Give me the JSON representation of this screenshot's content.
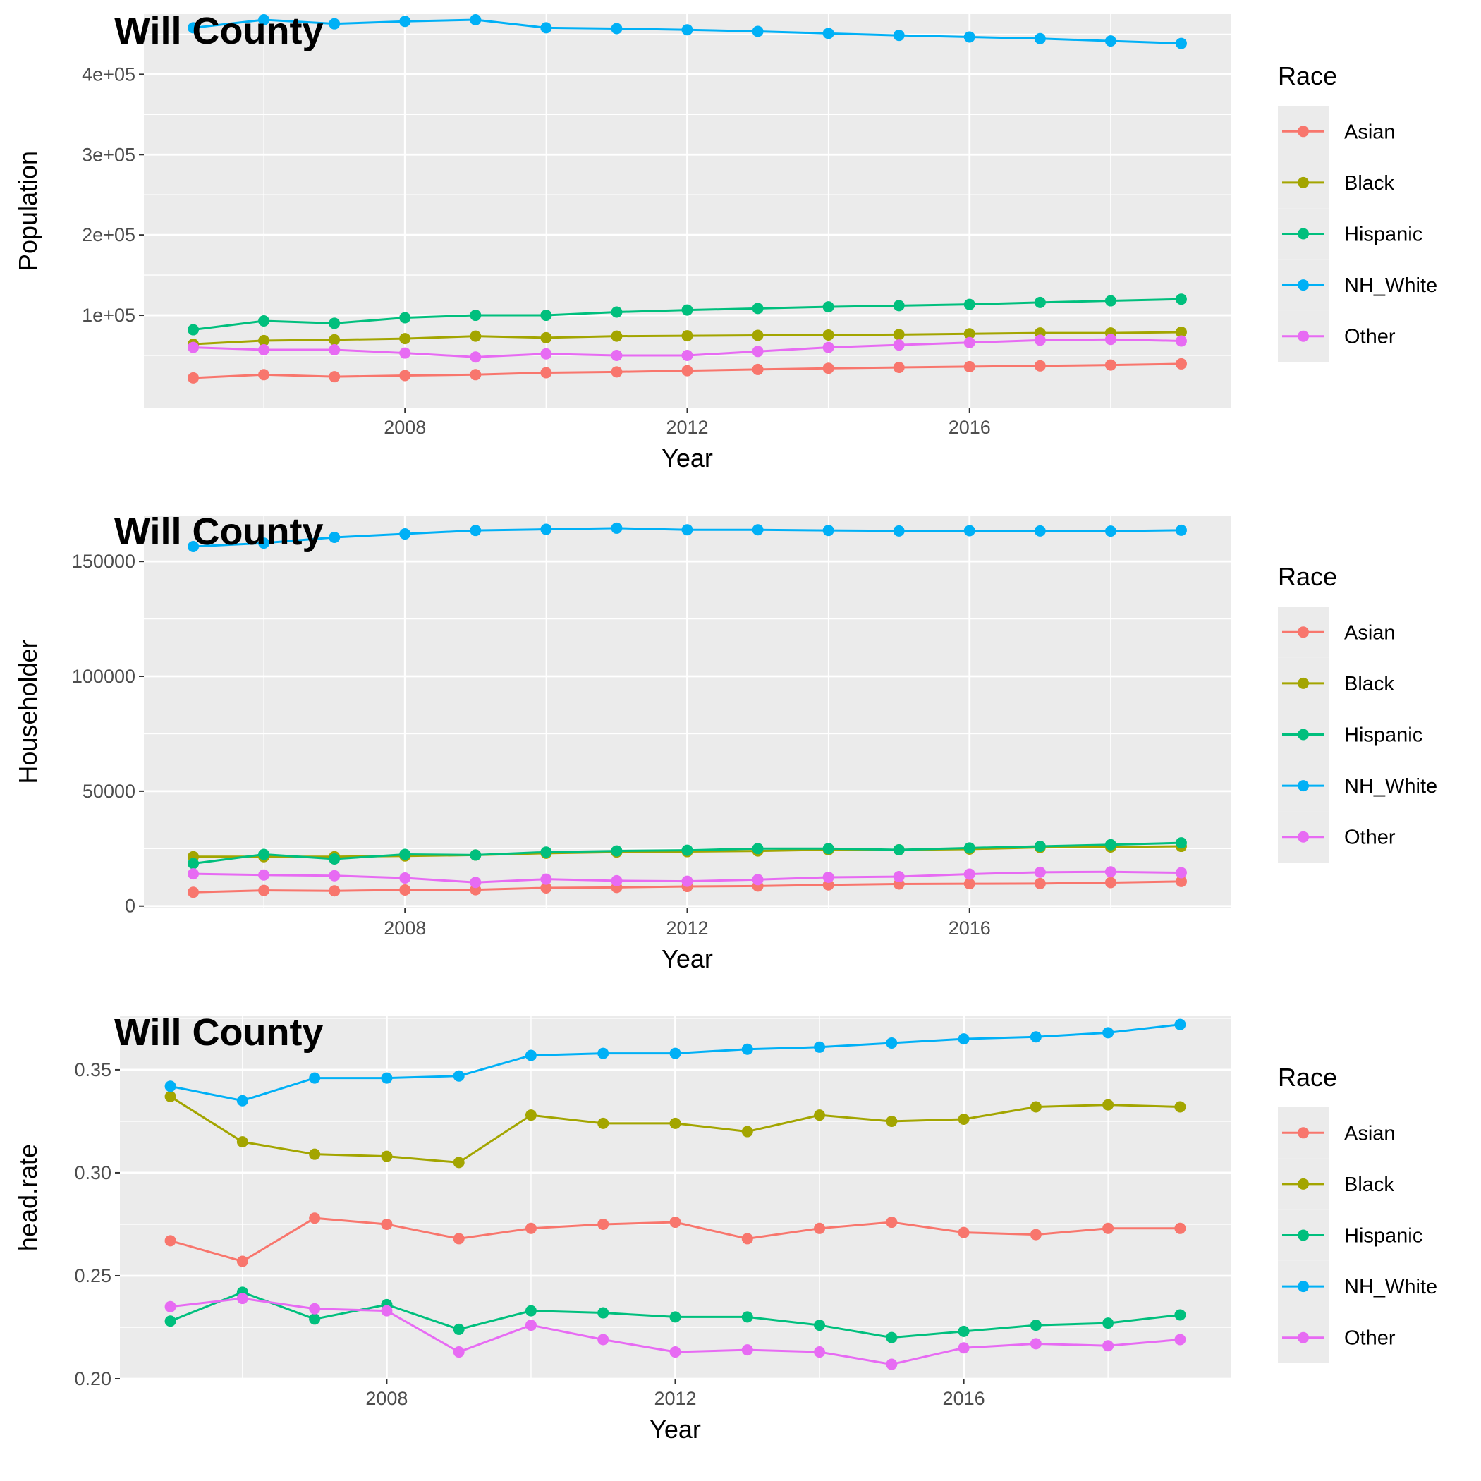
{
  "colors": {
    "Asian": "#F8766D",
    "Black": "#A3A500",
    "Hispanic": "#00BF7D",
    "NH_White": "#00B0F6",
    "Other": "#E76BF3",
    "panel_bg": "#EBEBEB",
    "grid": "#FFFFFF",
    "tick_text": "#4D4D4D"
  },
  "chart_data": [
    {
      "type": "line",
      "title": "Will County",
      "xlabel": "Year",
      "ylabel": "Population",
      "legend_title": "Race",
      "legend_position": "right",
      "grid": true,
      "xlim": [
        2004.3,
        2019.7
      ],
      "ylim": [
        -15000.0,
        475000.0
      ],
      "x_ticks": [
        2008,
        2012,
        2016
      ],
      "x_tick_labels": [
        "2008",
        "2012",
        "2016"
      ],
      "y_ticks": [
        100000,
        200000,
        300000,
        400000
      ],
      "y_tick_labels": [
        "1e+05",
        "2e+05",
        "3e+05",
        "4e+05"
      ],
      "x": [
        2005,
        2006,
        2007,
        2008,
        2009,
        2010,
        2011,
        2012,
        2013,
        2014,
        2015,
        2016,
        2017,
        2018,
        2019
      ],
      "series": [
        {
          "name": "Asian",
          "values": [
            22000,
            26000,
            23500,
            25000,
            26000,
            28500,
            29500,
            31000,
            32500,
            34000,
            35000,
            36000,
            37000,
            38000,
            39500
          ]
        },
        {
          "name": "Black",
          "values": [
            64000,
            68500,
            69500,
            71000,
            74000,
            72000,
            74000,
            74500,
            75000,
            75500,
            76000,
            77000,
            78000,
            78000,
            79000
          ]
        },
        {
          "name": "Hispanic",
          "values": [
            82000,
            93000,
            90000,
            97000,
            100000,
            100000,
            104000,
            106500,
            108500,
            110500,
            112000,
            113500,
            116000,
            118000,
            120000
          ]
        },
        {
          "name": "NH_White",
          "values": [
            458000,
            468000,
            463000,
            466000,
            468000,
            458000,
            457000,
            455500,
            453500,
            451000,
            448500,
            446500,
            444500,
            441500,
            438500
          ]
        },
        {
          "name": "Other",
          "values": [
            60000,
            57000,
            57000,
            53000,
            48000,
            52000,
            50000,
            50000,
            55000,
            60000,
            63000,
            66000,
            69000,
            70000,
            68000
          ]
        }
      ]
    },
    {
      "type": "line",
      "title": "Will County",
      "xlabel": "Year",
      "ylabel": "Householder",
      "legend_title": "Race",
      "legend_position": "right",
      "grid": true,
      "xlim": [
        2004.3,
        2019.7
      ],
      "ylim": [
        -1000,
        170000
      ],
      "x_ticks": [
        2008,
        2012,
        2016
      ],
      "x_tick_labels": [
        "2008",
        "2012",
        "2016"
      ],
      "y_ticks": [
        0,
        50000,
        100000,
        150000
      ],
      "y_tick_labels": [
        "0",
        "50000",
        "100000",
        "150000"
      ],
      "x": [
        2005,
        2006,
        2007,
        2008,
        2009,
        2010,
        2011,
        2012,
        2013,
        2014,
        2015,
        2016,
        2017,
        2018,
        2019
      ],
      "series": [
        {
          "name": "Asian",
          "values": [
            6000,
            6800,
            6600,
            7000,
            7100,
            7900,
            8100,
            8500,
            8700,
            9200,
            9600,
            9700,
            9800,
            10200,
            10700
          ]
        },
        {
          "name": "Black",
          "values": [
            21500,
            21500,
            21500,
            21800,
            22200,
            23000,
            23500,
            23700,
            24000,
            24500,
            24500,
            24800,
            25500,
            25700,
            26000
          ]
        },
        {
          "name": "Hispanic",
          "values": [
            18500,
            22500,
            20500,
            22500,
            22200,
            23500,
            24000,
            24300,
            25000,
            25000,
            24500,
            25300,
            26000,
            26700,
            27500
          ]
        },
        {
          "name": "NH_White",
          "values": [
            156500,
            158000,
            160500,
            162000,
            163500,
            164000,
            164500,
            163800,
            163800,
            163500,
            163300,
            163400,
            163300,
            163200,
            163600
          ]
        },
        {
          "name": "Other",
          "values": [
            14000,
            13500,
            13200,
            12200,
            10300,
            11700,
            11000,
            10800,
            11500,
            12500,
            12800,
            13900,
            14700,
            14900,
            14500
          ]
        }
      ]
    },
    {
      "type": "line",
      "title": "Will County",
      "xlabel": "Year",
      "ylabel": "head.rate",
      "legend_title": "Race",
      "legend_position": "right",
      "grid": true,
      "xlim": [
        2004.3,
        2019.7
      ],
      "ylim": [
        0.2,
        0.376
      ],
      "x_ticks": [
        2008,
        2012,
        2016
      ],
      "x_tick_labels": [
        "2008",
        "2012",
        "2016"
      ],
      "y_ticks": [
        0.2,
        0.25,
        0.3,
        0.35
      ],
      "y_tick_labels": [
        "0.20",
        "0.25",
        "0.30",
        "0.35"
      ],
      "x": [
        2005,
        2006,
        2007,
        2008,
        2009,
        2010,
        2011,
        2012,
        2013,
        2014,
        2015,
        2016,
        2017,
        2018,
        2019
      ],
      "series": [
        {
          "name": "Asian",
          "values": [
            0.267,
            0.257,
            0.278,
            0.275,
            0.268,
            0.273,
            0.275,
            0.276,
            0.268,
            0.273,
            0.276,
            0.271,
            0.27,
            0.273,
            0.273
          ]
        },
        {
          "name": "Black",
          "values": [
            0.337,
            0.315,
            0.309,
            0.308,
            0.305,
            0.328,
            0.324,
            0.324,
            0.32,
            0.328,
            0.325,
            0.326,
            0.332,
            0.333,
            0.332
          ]
        },
        {
          "name": "Hispanic",
          "values": [
            0.228,
            0.242,
            0.229,
            0.236,
            0.224,
            0.233,
            0.232,
            0.23,
            0.23,
            0.226,
            0.22,
            0.223,
            0.226,
            0.227,
            0.231
          ]
        },
        {
          "name": "NH_White",
          "values": [
            0.342,
            0.335,
            0.346,
            0.346,
            0.347,
            0.357,
            0.358,
            0.358,
            0.36,
            0.361,
            0.363,
            0.365,
            0.366,
            0.368,
            0.372
          ]
        },
        {
          "name": "Other",
          "values": [
            0.235,
            0.239,
            0.234,
            0.233,
            0.213,
            0.226,
            0.219,
            0.213,
            0.214,
            0.213,
            0.207,
            0.215,
            0.217,
            0.216,
            0.219
          ]
        }
      ]
    }
  ]
}
